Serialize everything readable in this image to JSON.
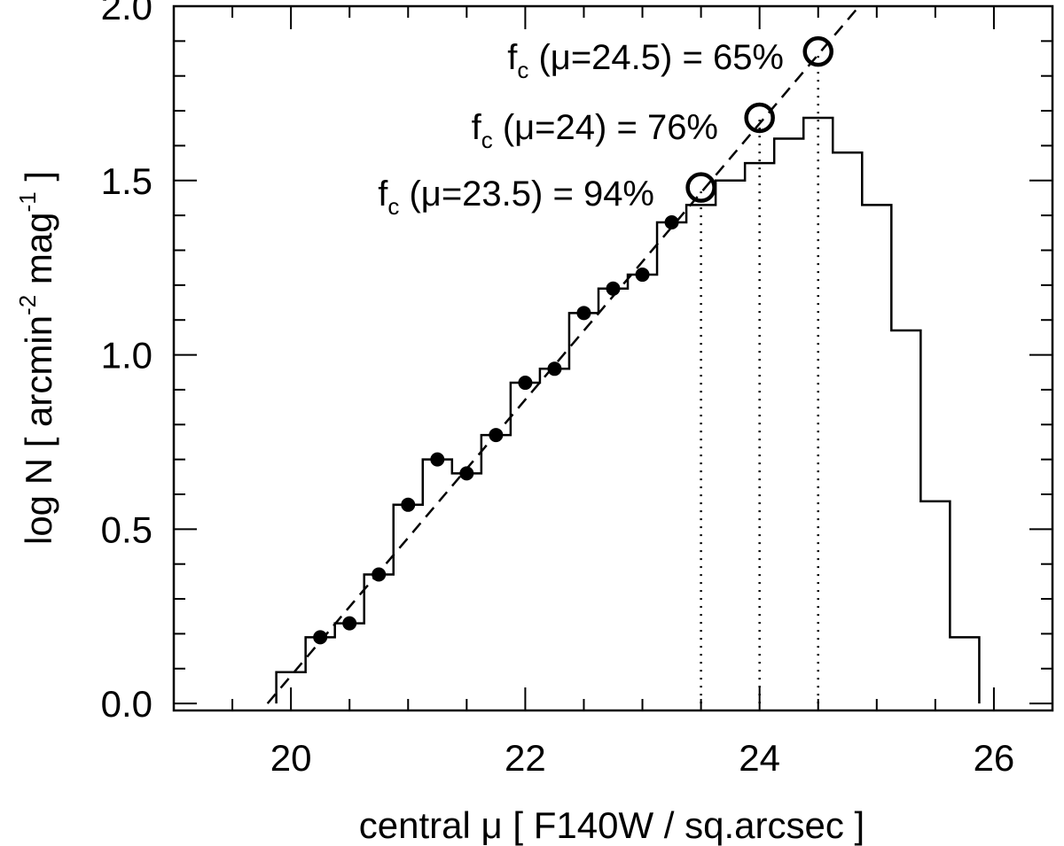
{
  "chart_data": {
    "type": "line",
    "xlabel_parts": [
      "central ",
      "μ",
      "   [ F140W / sq.arcsec ]"
    ],
    "ylabel_parts": [
      "log N  [ arcmin",
      "-2",
      "  mag",
      "-1",
      " ]"
    ],
    "xlim": [
      19.0,
      26.5
    ],
    "ylim": [
      -0.02,
      2.0
    ],
    "x_ticks": [
      20,
      22,
      24,
      26
    ],
    "x_tick_labels": [
      "20",
      "22",
      "24",
      "26"
    ],
    "x_minor_step": 0.5,
    "y_ticks": [
      0.0,
      0.5,
      1.0,
      1.5,
      2.0
    ],
    "y_tick_labels": [
      "0.0",
      "0.5",
      "1.0",
      "1.5",
      "2.0"
    ],
    "y_minor_step": 0.1,
    "grid": false,
    "histogram": {
      "name": "",
      "edges": [
        19.875,
        20.125,
        20.375,
        20.625,
        20.875,
        21.125,
        21.375,
        21.625,
        21.875,
        22.125,
        22.375,
        22.625,
        22.875,
        23.125,
        23.375,
        23.625,
        23.875,
        24.125,
        24.375,
        24.625,
        24.875,
        25.125,
        25.375,
        25.625,
        25.875
      ],
      "values": [
        0.09,
        0.19,
        0.23,
        0.37,
        0.57,
        0.7,
        0.66,
        0.77,
        0.92,
        0.96,
        1.12,
        1.19,
        1.23,
        1.38,
        1.43,
        1.5,
        1.55,
        1.62,
        1.68,
        1.58,
        1.43,
        1.07,
        0.58,
        0.19
      ]
    },
    "filled_points": {
      "x": [
        20.25,
        20.5,
        20.75,
        21.0,
        21.25,
        21.5,
        21.75,
        22.0,
        22.25,
        22.5,
        22.75,
        23.0,
        23.25
      ],
      "y": [
        0.19,
        0.23,
        0.37,
        0.57,
        0.7,
        0.66,
        0.77,
        0.92,
        0.96,
        1.12,
        1.19,
        1.23,
        1.38
      ]
    },
    "fit_line": {
      "x": [
        19.8,
        24.85
      ],
      "y": [
        0.0,
        2.0
      ],
      "style": "dashed"
    },
    "open_circles": {
      "x": [
        23.5,
        24.0,
        24.5
      ],
      "y": [
        1.48,
        1.68,
        1.87
      ]
    },
    "vertical_dotted": [
      {
        "x": 23.5,
        "y_top": 1.48
      },
      {
        "x": 24.0,
        "y_top": 1.68
      },
      {
        "x": 24.5,
        "y_top": 1.87
      }
    ],
    "annotations": [
      {
        "main": "f",
        "sub": "c",
        "rest": " (μ=24.5) = 65%"
      },
      {
        "main": "f",
        "sub": "c",
        "rest": " (μ=24) = 76%"
      },
      {
        "main": "f",
        "sub": "c",
        "rest": " (μ=23.5) = 94%"
      }
    ]
  }
}
